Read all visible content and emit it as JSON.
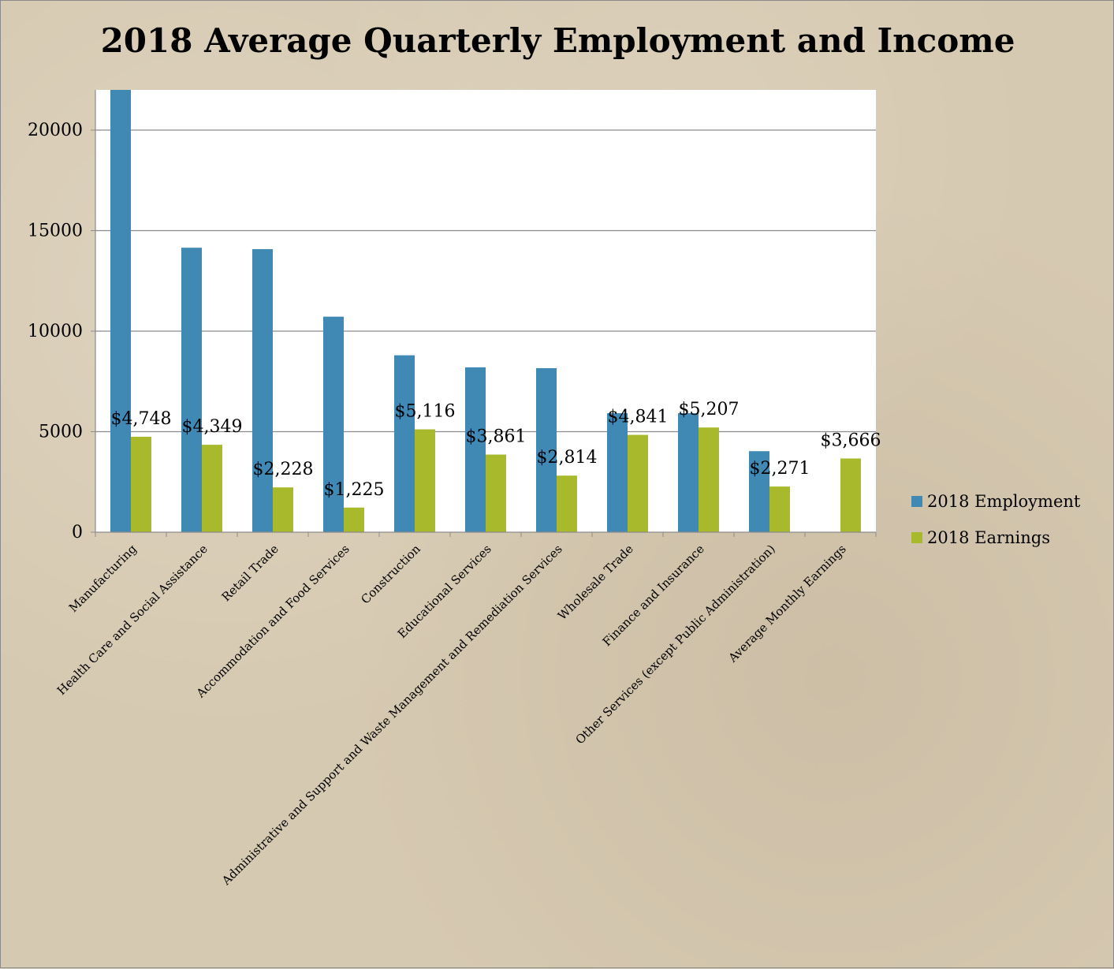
{
  "chart_data": {
    "type": "bar",
    "title": "2018 Average Quarterly Employment and Income",
    "xlabel": "",
    "ylabel": "",
    "ylim": [
      0,
      22000
    ],
    "yticks": [
      0,
      5000,
      10000,
      15000,
      20000
    ],
    "grid": true,
    "legend_position": "right",
    "categories": [
      "Manufacturing",
      "Health Care and Social Assistance",
      "Retail Trade",
      "Accommodation and Food Services",
      "Construction",
      "Educational Services",
      "Administrative and Support and Waste Management and Remediation Services",
      "Wholesale Trade",
      "Finance and Insurance",
      "Other Services (except Public Administration)",
      "Average Monthly Earnings"
    ],
    "series": [
      {
        "name": "2018 Employment",
        "color": "#4189b5",
        "values": [
          22000,
          14150,
          14080,
          10720,
          8800,
          8200,
          8160,
          5920,
          5920,
          4030,
          null
        ]
      },
      {
        "name": "2018 Earnings",
        "color": "#a8b92b",
        "values": [
          4748,
          4349,
          2228,
          1225,
          5116,
          3861,
          2814,
          4841,
          5207,
          2271,
          3666
        ],
        "labels": [
          "$4,748",
          "$4,349",
          "$2,228",
          "$1,225",
          "$5,116",
          "$3,861",
          "$2,814",
          "$4,841",
          "$5,207",
          "$2,271",
          "$3,666"
        ]
      }
    ]
  }
}
